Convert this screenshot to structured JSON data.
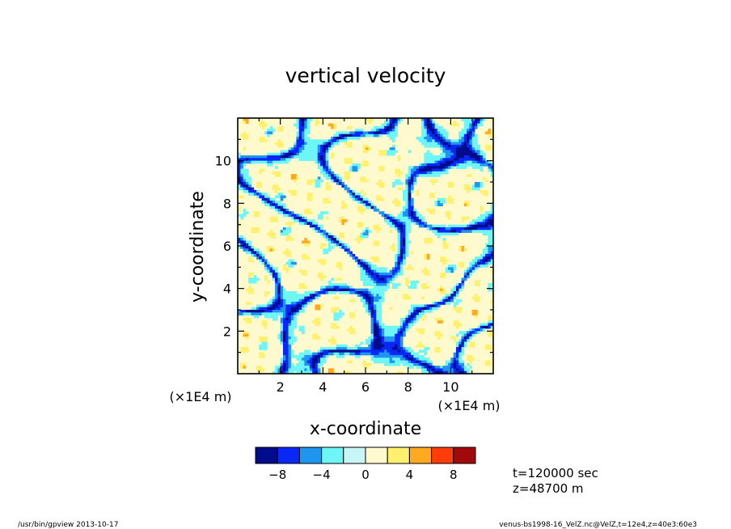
{
  "chart_data": {
    "type": "heatmap",
    "title": "vertical velocity",
    "xlabel": "x-coordinate",
    "ylabel": "y-coordinate",
    "x_unit_label": "(×1E4 m)",
    "y_unit_label": "(×1E4 m)",
    "xlim": [
      0,
      12
    ],
    "ylim": [
      0,
      12
    ],
    "x_ticks": [
      "2",
      "4",
      "6",
      "8",
      "10"
    ],
    "y_ticks": [
      "2",
      "4",
      "6",
      "8",
      "10"
    ],
    "colorbar": {
      "levels": [
        -10,
        -8,
        -6,
        -4,
        -2,
        0,
        2,
        4,
        6,
        8,
        10
      ],
      "tick_labels": [
        "−8",
        "−4",
        "0",
        "4",
        "8"
      ],
      "colors": [
        "#000c8c",
        "#0a28f5",
        "#1e96f0",
        "#6ef5f5",
        "#c8f5f5",
        "#fffacd",
        "#fff06e",
        "#ffaa1e",
        "#ff3c0a",
        "#a00a0a"
      ]
    },
    "grid": false,
    "background_value": 0
  },
  "annotations": {
    "time": "t=120000 sec",
    "height": "z=48700 m"
  },
  "footer": {
    "left": "/usr/bin/gpview   2013-10-17",
    "right": "venus-bs1998-16_VelZ.nc@VelZ,t=12e4,z=40e3:60e3"
  }
}
